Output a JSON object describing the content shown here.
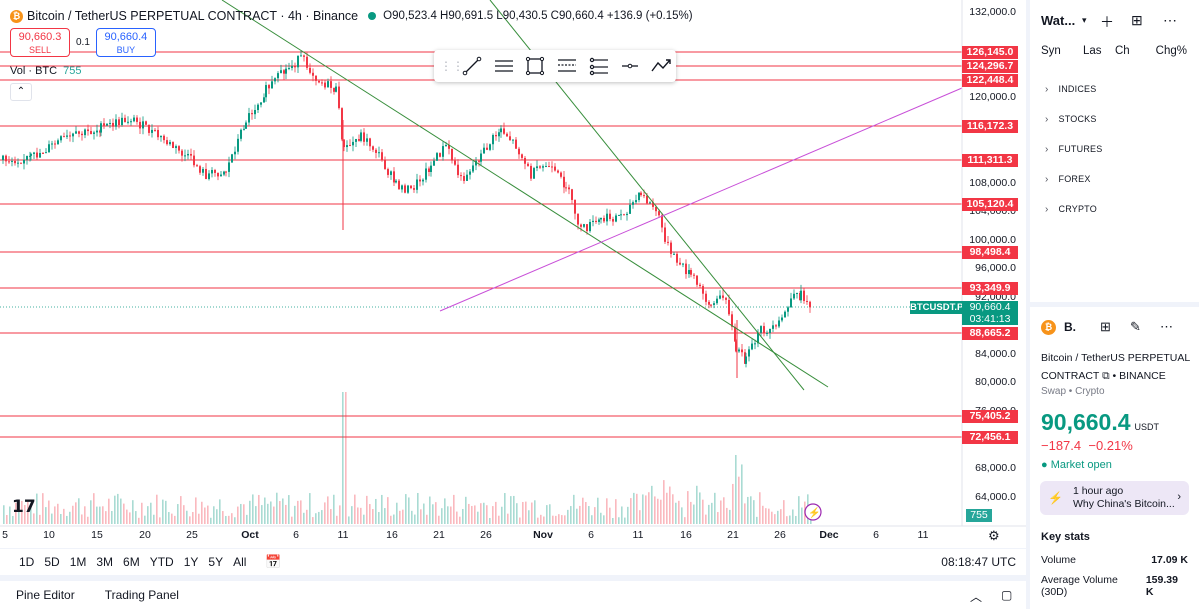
{
  "header": {
    "title": "Bitcoin / TetherUS PERPETUAL CONTRACT · 4h · Binance",
    "ohlc": "O90,523.4 H90,691.5 L90,430.5 C90,660.4 +136.9 (+0.15%)",
    "sell_price": "90,660.3",
    "sell_label": "SELL",
    "spread": "0.1",
    "buy_price": "90,660.4",
    "buy_label": "BUY",
    "volume_label": "Vol · BTC",
    "volume_value": "755",
    "collapse_glyph": "⌃"
  },
  "drawing_toolbar": {
    "tools": [
      "trend-line-icon",
      "parallel-lines-icon",
      "rectangle-icon",
      "fib-icon",
      "position-icon",
      "ray-icon",
      "path-icon"
    ]
  },
  "price_axis": {
    "ticks": [
      "132,000.0",
      "120,000.0",
      "108,000.0",
      "104,000.0",
      "100,000.0",
      "96,000.0",
      "92,000.0",
      "84,000.0",
      "80,000.0",
      "76,000.0",
      "68,000.0",
      "64,000.0"
    ],
    "levels": [
      "126,145.0",
      "124,296.7",
      "122,448.4",
      "116,172.3",
      "111,311.3",
      "105,120.4",
      "98,498.4",
      "93,349.9",
      "88,665.2",
      "75,405.2",
      "72,456.1"
    ],
    "current_price": "90,660.4",
    "countdown": "03:41:13",
    "symbol_tag": "BTCUSDT.P",
    "volume_tag": "755"
  },
  "time_axis": {
    "labels": [
      "5",
      "10",
      "15",
      "20",
      "25",
      "Oct",
      "6",
      "11",
      "16",
      "21",
      "26",
      "Nov",
      "6",
      "11",
      "16",
      "21",
      "26",
      "Dec",
      "6",
      "11"
    ]
  },
  "bottom_bar": {
    "ranges": [
      "1D",
      "5D",
      "1M",
      "3M",
      "6M",
      "YTD",
      "1Y",
      "5Y",
      "All"
    ],
    "clock": "08:18:47 UTC"
  },
  "panel_bar": {
    "pine_editor": "Pine Editor",
    "trading_panel": "Trading Panel"
  },
  "watchlist": {
    "title": "Wat...",
    "columns": [
      "Syn",
      "Las",
      "Ch",
      "Chg%"
    ],
    "groups": [
      "INDICES",
      "STOCKS",
      "FUTURES",
      "FOREX",
      "CRYPTO"
    ]
  },
  "details": {
    "short_name": "B.",
    "description": "Bitcoin / TetherUS PERPETUAL CONTRACT",
    "exchange": "BINANCE",
    "type": "Swap • Crypto",
    "price": "90,660.4",
    "currency": "USDT",
    "change": "−187.4",
    "change_pct": "−0.21%",
    "market_status": "Market open",
    "news_time": "1 hour ago",
    "news_title": "Why China's Bitcoin...",
    "key_stats_title": "Key stats",
    "stats": [
      {
        "label": "Volume",
        "value": "17.09 K"
      },
      {
        "label": "Average Volume (30D)",
        "value": "159.39 K"
      }
    ]
  },
  "colors": {
    "up": "#089981",
    "down": "#f23645",
    "level_line": "#f23645",
    "trend_line": "#388e3c",
    "ray_line": "#c84fd8"
  }
}
